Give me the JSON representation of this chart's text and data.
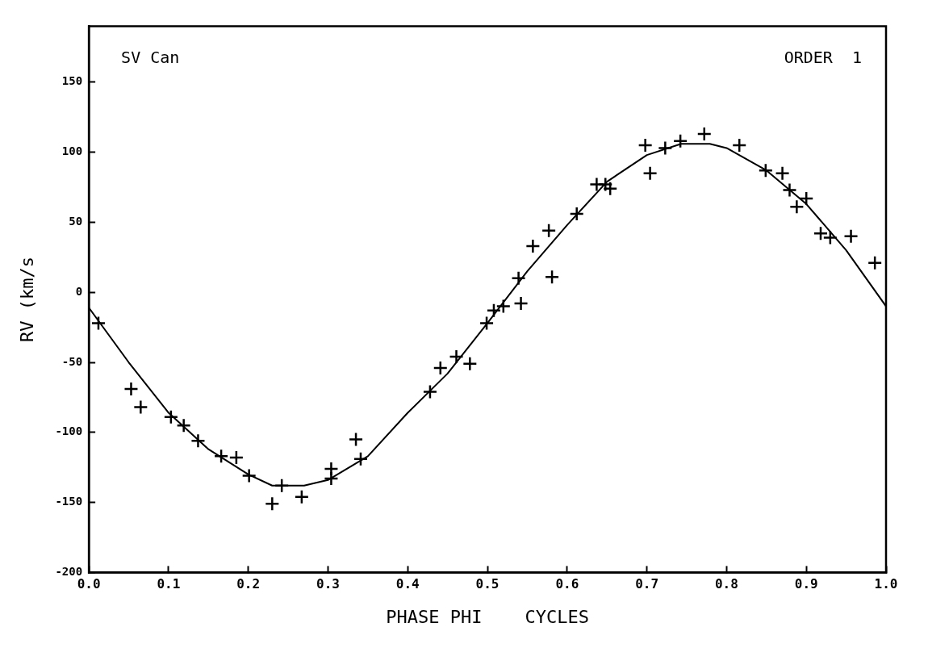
{
  "chart_data": {
    "type": "scatter",
    "xlabel": "PHASE PHI    CYCLES",
    "ylabel": "RV (km/s",
    "annotations": [
      "SV Can",
      "ORDER  1"
    ],
    "xlim": [
      0,
      1
    ],
    "xticks": [
      {
        "value": 0,
        "label": "0.0"
      },
      {
        "value": 0.1,
        "label": "0.1"
      },
      {
        "value": 0.2,
        "label": "0.2"
      },
      {
        "value": 0.3,
        "label": "0.3"
      },
      {
        "value": 0.4,
        "label": "0.4"
      },
      {
        "value": 0.5,
        "label": "0.5"
      },
      {
        "value": 0.6,
        "label": "0.6"
      },
      {
        "value": 0.7,
        "label": "0.7"
      },
      {
        "value": 0.8,
        "label": "0.8"
      },
      {
        "value": 0.9,
        "label": "0.9"
      },
      {
        "value": 1,
        "label": "1.0"
      }
    ],
    "ylim": [
      -200,
      190
    ],
    "yticks": [
      -200,
      -150,
      -100,
      -50,
      0,
      50,
      100,
      150
    ],
    "grid": false,
    "legend": false,
    "series": [
      {
        "color": "#000000",
        "marker": "cross",
        "x": [
          0.012,
          0.053,
          0.065,
          0.103,
          0.119,
          0.137,
          0.166,
          0.185,
          0.201,
          0.23,
          0.242,
          0.267,
          0.304,
          0.304,
          0.335,
          0.341,
          0.428,
          0.441,
          0.461,
          0.478,
          0.499,
          0.508,
          0.52,
          0.542,
          0.539,
          0.557,
          0.581,
          0.577,
          0.612,
          0.637,
          0.648,
          0.654,
          0.698,
          0.704,
          0.723,
          0.742,
          0.772,
          0.816,
          0.849,
          0.87,
          0.879,
          0.9,
          0.888,
          0.918,
          0.93,
          0.956,
          0.986
        ],
        "values": [
          -22,
          -69,
          -82,
          -89,
          -95,
          -106,
          -117,
          -118,
          -131,
          -151,
          -138,
          -146,
          -126,
          -133,
          -105,
          -119,
          -71,
          -54,
          -46,
          -51,
          -22,
          -13,
          -10,
          -8,
          10,
          33,
          11,
          44,
          56,
          77,
          77,
          74,
          105,
          85,
          103,
          108,
          113,
          105,
          87,
          85,
          73,
          67,
          61,
          42,
          39,
          40,
          21
        ]
      },
      {
        "type": "line",
        "color": "#000000",
        "marker": "none",
        "line_style": "solid",
        "x": [
          0,
          0.05,
          0.1,
          0.15,
          0.2,
          0.23,
          0.27,
          0.3,
          0.35,
          0.4,
          0.45,
          0.5,
          0.55,
          0.6,
          0.65,
          0.7,
          0.743,
          0.779,
          0.8,
          0.85,
          0.9,
          0.95,
          1
        ],
        "values": [
          -11,
          -50,
          -86,
          -112,
          -130,
          -138,
          -138,
          -134,
          -117,
          -86,
          -58,
          -22,
          15,
          48,
          79,
          98,
          106,
          106,
          103,
          87,
          63,
          30,
          -10
        ]
      }
    ]
  }
}
